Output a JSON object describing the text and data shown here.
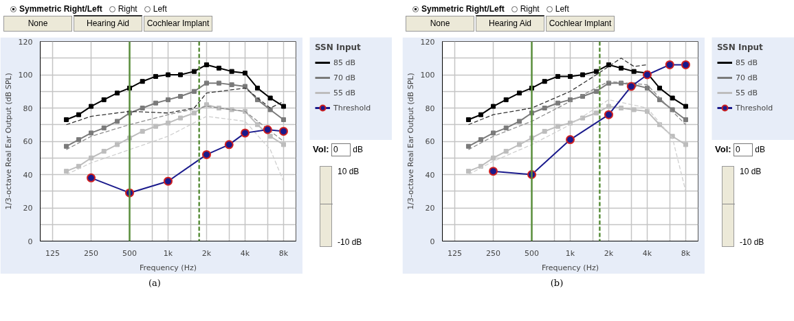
{
  "chart_data": [
    {
      "type": "line",
      "xlabel": "Frequency (Hz)",
      "ylabel": "1/3-octave Real Ear Output (dB SPL)",
      "legend_title": "SSN Input",
      "legend": "right",
      "grid": true,
      "log": "x",
      "marker": "square",
      "line_style": "solid",
      "x": [
        160,
        200,
        250,
        315,
        400,
        500,
        630,
        800,
        1000,
        1250,
        1600,
        2000,
        2500,
        3150,
        4000,
        5000,
        6300,
        8000
      ],
      "xlim": [
        100,
        10000
      ],
      "ylim": [
        0,
        120
      ],
      "xticks": [
        125,
        250,
        500,
        {
          "value": 750,
          "label": null
        },
        {
          "value": 1000,
          "label": "1k"
        },
        {
          "value": 1500,
          "label": null
        },
        {
          "value": 2000,
          "label": "2k"
        },
        {
          "value": 3000,
          "label": null
        },
        {
          "value": 4000,
          "label": "4k"
        },
        {
          "value": 6000,
          "label": null
        },
        {
          "value": 8000,
          "label": "8k"
        }
      ],
      "yticks": [
        0,
        {
          "value": 10,
          "label": null
        },
        20,
        {
          "value": 30,
          "label": null
        },
        40,
        {
          "value": 50,
          "label": null
        },
        60,
        {
          "value": 70,
          "label": null
        },
        80,
        {
          "value": 90,
          "label": null
        },
        100,
        {
          "value": 110,
          "label": null
        },
        120
      ],
      "series": [
        {
          "name": "85 dB",
          "color": "#000000",
          "values": [
            73,
            76,
            81,
            85,
            89,
            92,
            96,
            99,
            100,
            100,
            102,
            106,
            104,
            102,
            101,
            92,
            86,
            81
          ]
        },
        {
          "name": "70 dB",
          "color": "#7a7a7a",
          "values": [
            57,
            61,
            65,
            68,
            72,
            77,
            80,
            83,
            85,
            87,
            90,
            95,
            95,
            94,
            93,
            85,
            79,
            73
          ]
        },
        {
          "name": "55 dB",
          "color": "#bdbdbd",
          "values": [
            42,
            45,
            50,
            54,
            58,
            62,
            66,
            69,
            71,
            74,
            77,
            82,
            80,
            79,
            78,
            70,
            63,
            58
          ]
        },
        {
          "color": "#333333",
          "line_style": "dashed",
          "marker": "none",
          "x": [
            160,
            250,
            500,
            1000,
            1600,
            2000,
            4000,
            6300,
            8000
          ],
          "values": [
            70,
            75,
            78,
            77,
            80,
            89,
            92,
            80,
            84
          ]
        },
        {
          "color": "#8c8c8c",
          "line_style": "dashed",
          "marker": "none",
          "x": [
            160,
            250,
            500,
            1000,
            2000,
            4000,
            8000
          ],
          "values": [
            55,
            63,
            70,
            76,
            81,
            78,
            60
          ]
        },
        {
          "color": "#cfcfcf",
          "line_style": "dashed",
          "marker": "none",
          "x": [
            160,
            250,
            500,
            1000,
            2000,
            4000,
            6300,
            8000
          ],
          "values": [
            40,
            47,
            55,
            63,
            75,
            72,
            55,
            36
          ]
        },
        {
          "name": "Threshold",
          "color": "#1a1a8c",
          "marker": "circle",
          "x": [
            250,
            500,
            1000,
            2000,
            3000,
            4000,
            6000,
            8000
          ],
          "values": [
            38,
            29,
            36,
            52,
            58,
            65,
            67,
            66
          ]
        }
      ],
      "ref_lines": [
        {
          "axis": "x",
          "value": 500,
          "color": "#5a8f3c",
          "line_style": "solid"
        },
        {
          "axis": "x",
          "value": 1750,
          "color": "#5a8f3c",
          "line_style": "dashed"
        }
      ],
      "annotations": [
        "(a)",
        "Symmetric Right/Left",
        "Right",
        "Left",
        "None",
        "Hearing Aid",
        "Cochlear Implant",
        "Vol:",
        "0",
        "dB",
        "10 dB",
        "-10 dB"
      ]
    },
    {
      "type": "line",
      "xlabel": "Frequency (Hz)",
      "ylabel": "1/3-octave Real Ear Output (dB SPL)",
      "legend_title": "SSN Input",
      "legend": "right",
      "grid": true,
      "log": "x",
      "marker": "square",
      "line_style": "solid",
      "x": [
        160,
        200,
        250,
        315,
        400,
        500,
        630,
        800,
        1000,
        1250,
        1600,
        2000,
        2500,
        3150,
        4000,
        5000,
        6300,
        8000
      ],
      "xlim": [
        100,
        10000
      ],
      "ylim": [
        0,
        120
      ],
      "xticks": [
        125,
        250,
        500,
        {
          "value": 750,
          "label": null
        },
        {
          "value": 1000,
          "label": "1k"
        },
        {
          "value": 1500,
          "label": null
        },
        {
          "value": 2000,
          "label": "2k"
        },
        {
          "value": 3000,
          "label": null
        },
        {
          "value": 4000,
          "label": "4k"
        },
        {
          "value": 6000,
          "label": null
        },
        {
          "value": 8000,
          "label": "8k"
        }
      ],
      "yticks": [
        0,
        {
          "value": 10,
          "label": null
        },
        20,
        {
          "value": 30,
          "label": null
        },
        40,
        {
          "value": 50,
          "label": null
        },
        60,
        {
          "value": 70,
          "label": null
        },
        80,
        {
          "value": 90,
          "label": null
        },
        100,
        {
          "value": 110,
          "label": null
        },
        120
      ],
      "series": [
        {
          "name": "85 dB",
          "color": "#000000",
          "values": [
            73,
            76,
            81,
            85,
            89,
            92,
            96,
            99,
            99,
            100,
            102,
            106,
            104,
            102,
            101,
            92,
            86,
            81
          ]
        },
        {
          "name": "70 dB",
          "color": "#7a7a7a",
          "values": [
            57,
            61,
            65,
            68,
            72,
            77,
            80,
            83,
            85,
            87,
            90,
            95,
            95,
            94,
            92,
            85,
            79,
            73
          ]
        },
        {
          "name": "55 dB",
          "color": "#bdbdbd",
          "values": [
            42,
            45,
            50,
            54,
            58,
            62,
            66,
            69,
            71,
            74,
            77,
            81,
            80,
            79,
            78,
            70,
            63,
            58
          ]
        },
        {
          "color": "#333333",
          "line_style": "dashed",
          "marker": "none",
          "x": [
            160,
            250,
            500,
            1000,
            1600,
            2000,
            2500,
            3150,
            4000
          ],
          "values": [
            70,
            76,
            80,
            90,
            100,
            105,
            110,
            105,
            106
          ]
        },
        {
          "color": "#8c8c8c",
          "line_style": "dashed",
          "marker": "none",
          "x": [
            160,
            250,
            500,
            1000,
            2000,
            4000,
            6300,
            8000
          ],
          "values": [
            55,
            63,
            72,
            84,
            96,
            94,
            78,
            70
          ]
        },
        {
          "color": "#cfcfcf",
          "line_style": "dashed",
          "marker": "none",
          "x": [
            160,
            250,
            500,
            1000,
            2000,
            4000,
            6300,
            8000
          ],
          "values": [
            40,
            48,
            58,
            70,
            85,
            80,
            62,
            30
          ]
        },
        {
          "name": "Threshold",
          "color": "#1a1a8c",
          "marker": "circle",
          "x": [
            250,
            500,
            1000,
            2000,
            3000,
            4000,
            6000,
            8000
          ],
          "values": [
            42,
            40,
            61,
            76,
            93,
            100,
            106,
            106
          ]
        }
      ],
      "ref_lines": [
        {
          "axis": "x",
          "value": 500,
          "color": "#5a8f3c",
          "line_style": "solid"
        },
        {
          "axis": "x",
          "value": 1700,
          "color": "#5a8f3c",
          "line_style": "dashed"
        }
      ],
      "annotations": [
        "(b)",
        "Symmetric Right/Left",
        "Right",
        "Left",
        "None",
        "Hearing Aid",
        "Cochlear Implant",
        "Vol:",
        "0",
        "dB",
        "10 dB",
        "-10 dB"
      ]
    }
  ]
}
